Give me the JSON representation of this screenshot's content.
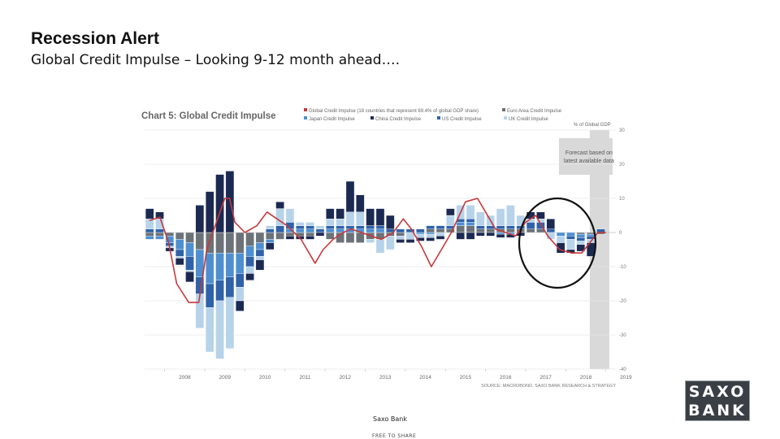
{
  "slide": {
    "title": "Recession Alert",
    "subtitle": "Global Credit Impulse – Looking 9-12 month ahead…."
  },
  "footer": {
    "source_name": "Saxo Bank",
    "share_note": "FREE TO SHARE",
    "logo_line1": "SAXO",
    "logo_line2": "BANK"
  },
  "colors": {
    "global": "#c8383a",
    "euro": "#6b7278",
    "japan": "#4f8fd0",
    "china": "#1c2a52",
    "us": "#2f62a8",
    "uk": "#b7d3ea",
    "forecast": "#d9d9d9",
    "circle": "#111111"
  },
  "chart_data": {
    "type": "bar",
    "title": "Chart 5: Global Credit Impulse",
    "unit_label": "% of Global GDP",
    "source": "SOURCE: MACROBOND, SAXO BANK RESEARCH & STRATEGY",
    "forecast_label": "Forecast based on latest available data",
    "ylim": [
      -40,
      30
    ],
    "yticks": [
      30,
      20,
      10,
      0,
      -10,
      -20,
      -30,
      -40
    ],
    "xlim": [
      2007.5,
      2019.25
    ],
    "x_ticks": [
      "2008",
      "2009",
      "2010",
      "2011",
      "2012",
      "2013",
      "2014",
      "2015",
      "2016",
      "2017",
      "2018",
      "2019"
    ],
    "grid": true,
    "legend_position": "top",
    "forecast_from": 2018.6,
    "quarters": [
      2007.625,
      2007.875,
      2008.125,
      2008.375,
      2008.625,
      2008.875,
      2009.125,
      2009.375,
      2009.625,
      2009.875,
      2010.125,
      2010.375,
      2010.625,
      2010.875,
      2011.125,
      2011.375,
      2011.625,
      2011.875,
      2012.125,
      2012.375,
      2012.625,
      2012.875,
      2013.125,
      2013.375,
      2013.625,
      2013.875,
      2014.125,
      2014.375,
      2014.625,
      2014.875,
      2015.125,
      2015.375,
      2015.625,
      2015.875,
      2016.125,
      2016.375,
      2016.625,
      2016.875,
      2017.125,
      2017.375,
      2017.625,
      2017.875,
      2018.125,
      2018.375,
      2018.625,
      2018.875
    ],
    "series": [
      {
        "name": "Euro Area Credit Impulse",
        "key": "euro",
        "style": "bar",
        "values": [
          -1,
          -1,
          -1,
          -2,
          -3,
          -5,
          -6,
          -6,
          -6,
          -6,
          -4,
          -3,
          -2,
          -2,
          -1,
          -1,
          -1,
          0,
          -2,
          -3,
          -3,
          -3,
          -2,
          -2,
          -1,
          -1,
          0,
          0,
          1,
          1,
          1,
          2,
          2,
          1,
          1,
          1,
          1,
          1,
          1,
          1,
          0,
          0,
          0,
          -0.5,
          -0.5,
          -0.5
        ]
      },
      {
        "name": "Japan Credit Impulse",
        "key": "japan",
        "style": "bar",
        "values": [
          -1,
          -1,
          -2,
          -3,
          -4,
          -8,
          -9,
          -8,
          -7,
          -6,
          -3,
          -2,
          -1,
          0,
          1,
          1,
          1,
          0,
          1,
          1,
          1,
          1,
          1,
          1,
          0,
          0,
          0,
          -0.5,
          -0.5,
          0,
          0,
          1,
          1,
          0,
          0,
          -0.5,
          -0.5,
          0,
          0,
          0,
          0,
          -1,
          -1,
          -1,
          -0.5,
          0
        ]
      },
      {
        "name": "China Credit Impulse",
        "key": "china",
        "style": "bar",
        "values": [
          3,
          2,
          -1,
          -2,
          -3,
          8,
          12,
          17,
          18,
          -3,
          -2,
          -3,
          -2,
          2,
          -1,
          -1,
          -1,
          -1,
          3,
          3,
          9,
          5,
          5,
          5,
          4,
          -1,
          -1,
          -1,
          -1,
          -1,
          2,
          -2,
          -2,
          -1,
          -1,
          -1,
          -1,
          -1,
          2,
          2,
          3,
          -3,
          -1,
          -2,
          -4,
          0
        ]
      },
      {
        "name": "US Credit Impulse",
        "key": "us",
        "style": "bar",
        "values": [
          1,
          1,
          -1,
          -2,
          -4,
          -5,
          -7,
          -6,
          -6,
          -4,
          -3,
          -2,
          1,
          2,
          2,
          1,
          1,
          1,
          1,
          1,
          1,
          1,
          1,
          1,
          1,
          1,
          1,
          1,
          1,
          1,
          1,
          1,
          1,
          1,
          1,
          1,
          1,
          1,
          2,
          2,
          1,
          0,
          -1,
          -1,
          -1,
          1
        ]
      },
      {
        "name": "UK Credit Impulse",
        "key": "uk",
        "style": "bar",
        "values": [
          3,
          3,
          -0.5,
          -0.5,
          -0.5,
          -10,
          -13,
          -17,
          -15,
          -4,
          -2,
          -1,
          1,
          5,
          4,
          1,
          1,
          1,
          2,
          2,
          4,
          4,
          -1,
          -4,
          -4,
          -1,
          -2,
          -1,
          -1,
          -1,
          3,
          4,
          4,
          4,
          3,
          5,
          6,
          3,
          1,
          1,
          -2,
          -2,
          -3,
          -1,
          -1,
          0
        ]
      },
      {
        "name": "Global Credit Impulse (18 countries that represent 69.4% of global GDP share)",
        "key": "global",
        "style": "line",
        "x": [
          2007.62,
          2007.88,
          2008.1,
          2008.3,
          2008.6,
          2008.85,
          2009.05,
          2009.5,
          2009.62,
          2009.75,
          2010.0,
          2010.3,
          2010.55,
          2010.8,
          2011.05,
          2011.4,
          2011.75,
          2011.95,
          2012.2,
          2012.45,
          2012.65,
          2012.9,
          2013.15,
          2013.4,
          2013.7,
          2013.95,
          2014.15,
          2014.4,
          2014.65,
          2014.9,
          2015.15,
          2015.5,
          2015.8,
          2016.0,
          2016.25,
          2016.5,
          2016.75,
          2017.0,
          2017.25,
          2017.55,
          2017.85,
          2018.15,
          2018.4,
          2018.6,
          2018.8,
          2019.0
        ],
        "values": [
          3.5,
          4.5,
          -3,
          -15,
          -20.5,
          -20.5,
          -5,
          10,
          10,
          3,
          0,
          2,
          6,
          4,
          2,
          -2,
          -9,
          -5,
          -2,
          0,
          1,
          0,
          -1,
          -2,
          0,
          4,
          1,
          -4,
          -10,
          -5,
          0,
          9,
          10,
          6,
          1,
          0,
          -1,
          3,
          5,
          -1,
          -5,
          -6,
          -6,
          -3,
          0,
          0
        ]
      }
    ]
  }
}
